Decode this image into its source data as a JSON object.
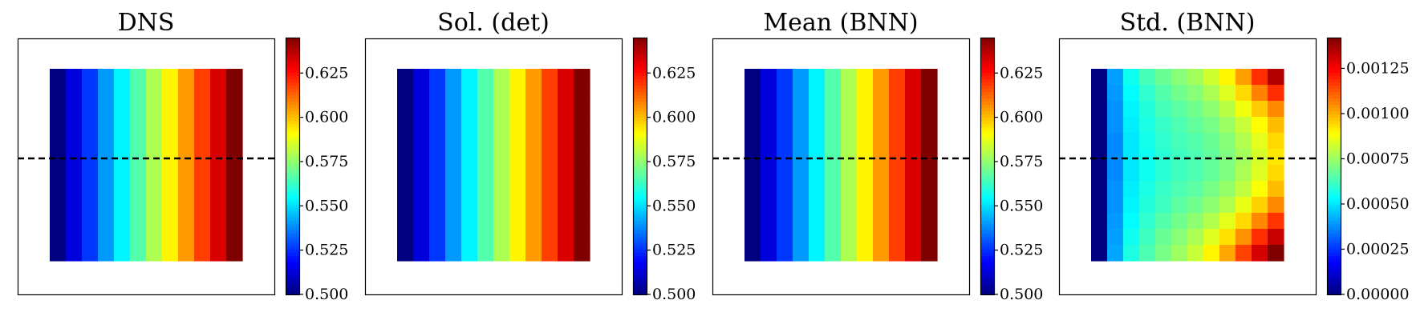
{
  "chart_data": [
    {
      "type": "heatmap",
      "title": "DNS",
      "grid": {
        "rows": 12,
        "cols": 12
      },
      "colormap": "jet",
      "clim": [
        0.5,
        0.645
      ],
      "colorbar_ticks": [
        "0.500",
        "0.525",
        "0.550",
        "0.575",
        "0.600",
        "0.625"
      ],
      "colorbar_tick_values": [
        0.5,
        0.525,
        0.55,
        0.575,
        0.6,
        0.625
      ],
      "column_values": [
        0.5,
        0.513,
        0.526,
        0.54,
        0.553,
        0.566,
        0.579,
        0.592,
        0.605,
        0.618,
        0.632,
        0.645
      ],
      "dashed_line": "horizontal at mid height"
    },
    {
      "type": "heatmap",
      "title": "Sol. (det)",
      "grid": {
        "rows": 12,
        "cols": 12
      },
      "colormap": "jet",
      "clim": [
        0.5,
        0.645
      ],
      "colorbar_ticks": [
        "0.500",
        "0.525",
        "0.550",
        "0.575",
        "0.600",
        "0.625"
      ],
      "colorbar_tick_values": [
        0.5,
        0.525,
        0.55,
        0.575,
        0.6,
        0.625
      ],
      "column_values": [
        0.5,
        0.513,
        0.526,
        0.54,
        0.553,
        0.566,
        0.579,
        0.592,
        0.605,
        0.618,
        0.632,
        0.645
      ],
      "dashed_line": "none"
    },
    {
      "type": "heatmap",
      "title": "Mean (BNN)",
      "grid": {
        "rows": 12,
        "cols": 12
      },
      "colormap": "jet",
      "clim": [
        0.5,
        0.645
      ],
      "colorbar_ticks": [
        "0.500",
        "0.525",
        "0.550",
        "0.575",
        "0.600",
        "0.625"
      ],
      "colorbar_tick_values": [
        0.5,
        0.525,
        0.55,
        0.575,
        0.6,
        0.625
      ],
      "column_values": [
        0.5,
        0.513,
        0.526,
        0.54,
        0.553,
        0.566,
        0.579,
        0.592,
        0.605,
        0.618,
        0.632,
        0.645
      ],
      "dashed_line": "horizontal at mid height"
    },
    {
      "type": "heatmap",
      "title": "Std. (BNN)",
      "grid": {
        "rows": 12,
        "cols": 12
      },
      "colormap": "jet",
      "clim": [
        0.0,
        0.00142
      ],
      "colorbar_ticks": [
        "0.00000",
        "0.00025",
        "0.00050",
        "0.00075",
        "0.00100",
        "0.00125"
      ],
      "colorbar_tick_values": [
        0.0,
        0.00025,
        0.0005,
        0.00075,
        0.001,
        0.00125
      ],
      "values": [
        [
          0.0,
          0.0004,
          0.00055,
          0.00063,
          0.00068,
          0.00072,
          0.00076,
          0.00082,
          0.0009,
          0.00102,
          0.00118,
          0.00135
        ],
        [
          0.0,
          0.00039,
          0.00053,
          0.0006,
          0.00065,
          0.00069,
          0.00072,
          0.00077,
          0.00084,
          0.00094,
          0.00106,
          0.00118
        ],
        [
          0.0,
          0.00038,
          0.00052,
          0.00058,
          0.00063,
          0.00066,
          0.00069,
          0.00073,
          0.00079,
          0.00087,
          0.00096,
          0.00105
        ],
        [
          0.0,
          0.00038,
          0.00051,
          0.00057,
          0.00061,
          0.00064,
          0.00067,
          0.0007,
          0.00075,
          0.00081,
          0.00089,
          0.00098
        ],
        [
          0.0,
          0.00037,
          0.0005,
          0.00056,
          0.0006,
          0.00063,
          0.00065,
          0.00068,
          0.00072,
          0.00078,
          0.00085,
          0.00094
        ],
        [
          0.0,
          0.00037,
          0.0005,
          0.00055,
          0.00059,
          0.00062,
          0.00064,
          0.00067,
          0.00071,
          0.00076,
          0.00083,
          0.00092
        ],
        [
          0.0,
          0.00037,
          0.0005,
          0.00055,
          0.00059,
          0.00062,
          0.00064,
          0.00067,
          0.00071,
          0.00077,
          0.00084,
          0.00094
        ],
        [
          0.0,
          0.00038,
          0.00051,
          0.00057,
          0.00061,
          0.00064,
          0.00066,
          0.0007,
          0.00074,
          0.0008,
          0.00088,
          0.00098
        ],
        [
          0.0,
          0.00038,
          0.00052,
          0.00058,
          0.00062,
          0.00066,
          0.00069,
          0.00073,
          0.00078,
          0.00086,
          0.00095,
          0.00105
        ],
        [
          0.0,
          0.00039,
          0.00053,
          0.0006,
          0.00065,
          0.00069,
          0.00073,
          0.00078,
          0.00085,
          0.00094,
          0.00105,
          0.00117
        ],
        [
          0.0,
          0.0004,
          0.00055,
          0.00062,
          0.00068,
          0.00072,
          0.00077,
          0.00084,
          0.00093,
          0.00104,
          0.00118,
          0.00132
        ],
        [
          0.0,
          0.00041,
          0.00057,
          0.00064,
          0.0007,
          0.00075,
          0.00081,
          0.0009,
          0.00101,
          0.00115,
          0.0013,
          0.00142
        ]
      ],
      "dashed_line": "horizontal at mid height"
    }
  ]
}
